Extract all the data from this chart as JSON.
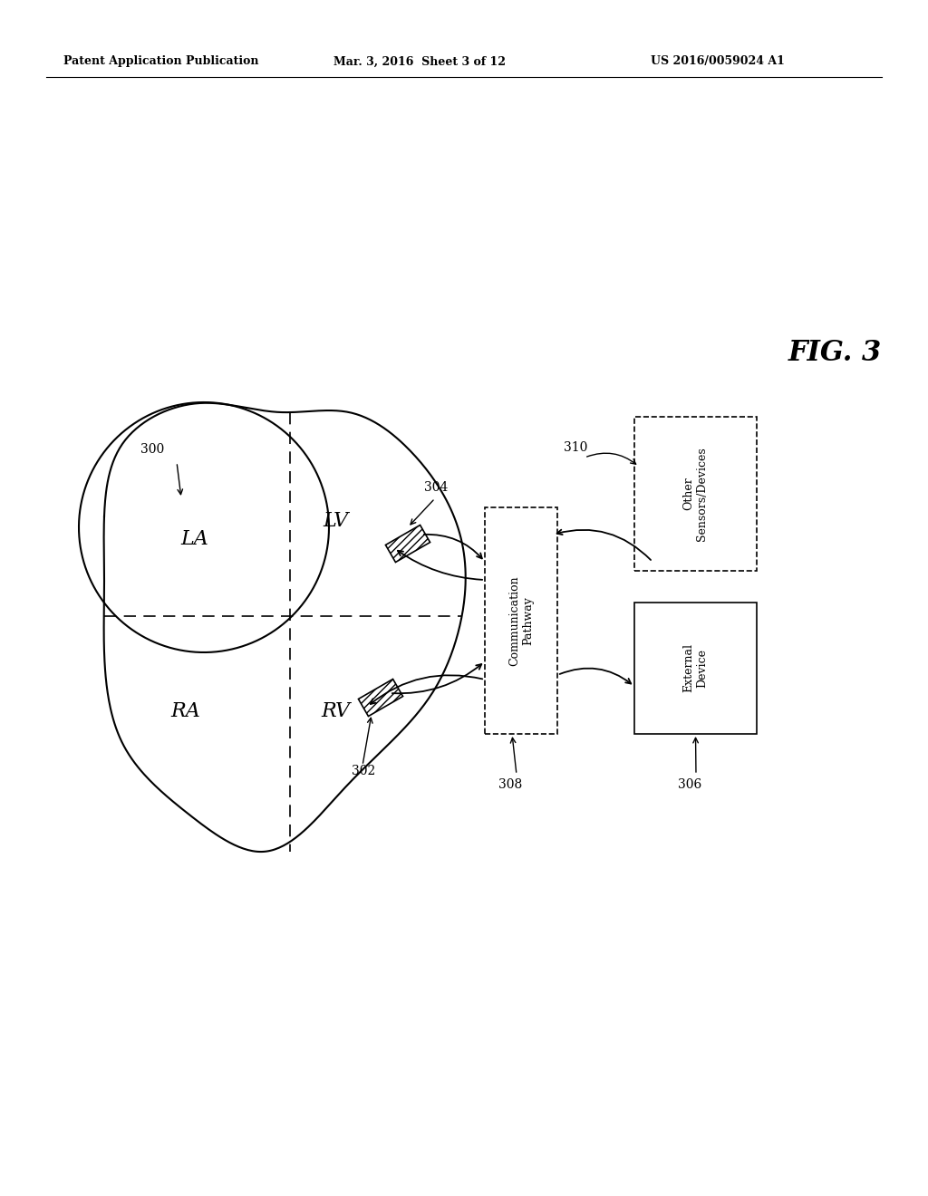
{
  "bg_color": "#ffffff",
  "header_left": "Patent Application Publication",
  "header_mid": "Mar. 3, 2016  Sheet 3 of 12",
  "header_right": "US 2016/0059024 A1",
  "fig_label": "FIG. 3",
  "label_300": "300",
  "label_302": "302",
  "label_304": "304",
  "label_306": "306",
  "label_308": "308",
  "label_310": "310",
  "box_comm_text": "Communication\nPathway",
  "box_ext_text": "External\nDevice",
  "box_sensors_text": "Other\nSensors/Devices",
  "heart_LA": "LA",
  "heart_LV": "LV",
  "heart_RA": "RA",
  "heart_RV": "RV"
}
